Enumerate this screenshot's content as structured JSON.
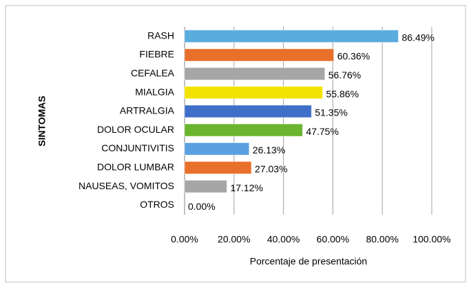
{
  "chart_data": {
    "type": "hbar",
    "x_label": "Porcentaje de presentación",
    "y_label": "SINTOMAS",
    "categories": [
      "RASH",
      "FIEBRE",
      "CEFALEA",
      "MIALGIA",
      "ARTRALGIA",
      "DOLOR OCULAR",
      "CONJUNTIVITIS",
      "DOLOR LUMBAR",
      "NAUSEAS, VOMITOS",
      "OTROS"
    ],
    "values": [
      86.49,
      60.36,
      56.76,
      55.86,
      51.35,
      47.75,
      26.13,
      27.03,
      17.12,
      0
    ],
    "value_labels": [
      "86.49%",
      "60.36%",
      "56.76%",
      "55.86%",
      "51.35%",
      "47.75%",
      "26.13%",
      "27.03%",
      "17.12%",
      "0.00%"
    ],
    "colors": [
      "#5aacdf",
      "#e8702a",
      "#a6a6a6",
      "#f2e400",
      "#3f6fc8",
      "#6ab42e",
      "#5aa0e0",
      "#e8702a",
      "#a6a6a6",
      "#a6a6a6"
    ],
    "xlim": [
      0,
      100
    ],
    "xticks": [
      {
        "value": 0,
        "label": "0.00%"
      },
      {
        "value": 20,
        "label": "20.00%"
      },
      {
        "value": 40,
        "label": "40.00%"
      },
      {
        "value": 60,
        "label": "60.00%"
      },
      {
        "value": 80,
        "label": "80.00%"
      },
      {
        "value": 100,
        "label": "100.00%"
      }
    ],
    "grid": true
  }
}
